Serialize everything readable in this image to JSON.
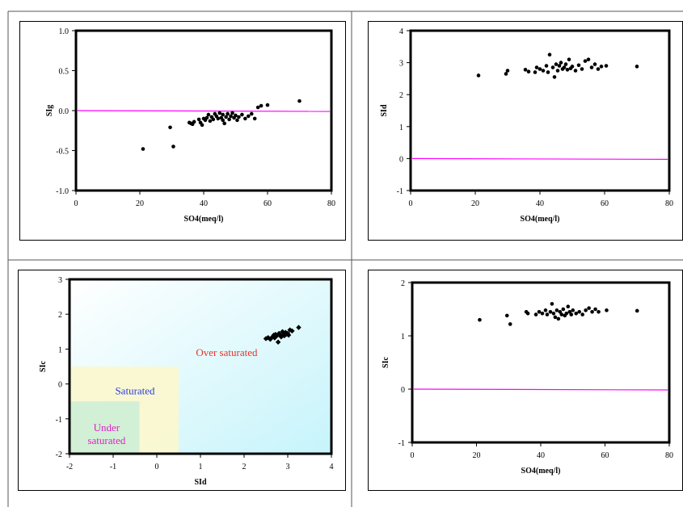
{
  "colors": {
    "axis": "#000000",
    "point": "#000000",
    "ref_line": "#ff00ff",
    "grid_border": "#555555",
    "over_saturated": "#e8332a",
    "saturated": "#2b3bd6",
    "under_saturated": "#e020c8",
    "bg_cyan": "#c6f4fb",
    "saturated_zone": "#fbf7cf",
    "under_zone": "#cdeed6"
  },
  "chart_data": [
    {
      "type": "scatter",
      "xlabel": "SO4(meq/l)",
      "ylabel": "SIg",
      "xlim": [
        0,
        80
      ],
      "ylim": [
        -1.0,
        1.0
      ],
      "xticks": [
        "0",
        "20",
        "40",
        "60",
        "80"
      ],
      "yticks": [
        "-1.0",
        "-0.5",
        "0.0",
        "0.5",
        "1.0"
      ],
      "reference_line": 0,
      "points": [
        [
          21,
          -0.48
        ],
        [
          29.5,
          -0.21
        ],
        [
          30.5,
          -0.45
        ],
        [
          35.5,
          -0.15
        ],
        [
          36,
          -0.16
        ],
        [
          36.5,
          -0.17
        ],
        [
          37,
          -0.14
        ],
        [
          38.5,
          -0.11
        ],
        [
          39,
          -0.15
        ],
        [
          39.5,
          -0.18
        ],
        [
          40,
          -0.1
        ],
        [
          40.5,
          -0.12
        ],
        [
          41,
          -0.09
        ],
        [
          41.5,
          -0.05
        ],
        [
          42,
          -0.13
        ],
        [
          42.5,
          -0.08
        ],
        [
          43,
          -0.11
        ],
        [
          43.5,
          -0.04
        ],
        [
          44,
          -0.07
        ],
        [
          44.5,
          -0.1
        ],
        [
          45,
          -0.03
        ],
        [
          45.5,
          -0.09
        ],
        [
          46,
          -0.12
        ],
        [
          46,
          -0.05
        ],
        [
          46.5,
          -0.16
        ],
        [
          47,
          -0.08
        ],
        [
          47.5,
          -0.04
        ],
        [
          48,
          -0.11
        ],
        [
          48.5,
          -0.07
        ],
        [
          49,
          -0.03
        ],
        [
          49.5,
          -0.09
        ],
        [
          50,
          -0.06
        ],
        [
          50.5,
          -0.12
        ],
        [
          51,
          -0.08
        ],
        [
          52,
          -0.05
        ],
        [
          53,
          -0.1
        ],
        [
          54,
          -0.07
        ],
        [
          55,
          -0.04
        ],
        [
          56,
          -0.1
        ],
        [
          57,
          0.04
        ],
        [
          58,
          0.06
        ],
        [
          60,
          0.07
        ],
        [
          70,
          0.12
        ]
      ]
    },
    {
      "type": "scatter",
      "xlabel": "SO4(meq/l)",
      "ylabel": "SId",
      "xlim": [
        0,
        80
      ],
      "ylim": [
        -1,
        4
      ],
      "xticks": [
        "0",
        "20",
        "40",
        "60",
        "80"
      ],
      "yticks": [
        "-1",
        "0",
        "1",
        "2",
        "3",
        "4"
      ],
      "reference_line": 0,
      "points": [
        [
          21,
          2.6
        ],
        [
          29.5,
          2.65
        ],
        [
          30,
          2.75
        ],
        [
          35.5,
          2.78
        ],
        [
          36.5,
          2.72
        ],
        [
          38.5,
          2.7
        ],
        [
          39,
          2.85
        ],
        [
          40,
          2.8
        ],
        [
          41,
          2.75
        ],
        [
          42,
          2.9
        ],
        [
          42.5,
          2.7
        ],
        [
          43,
          3.25
        ],
        [
          44,
          2.85
        ],
        [
          44.5,
          2.55
        ],
        [
          45,
          2.95
        ],
        [
          45.5,
          2.75
        ],
        [
          46,
          2.9
        ],
        [
          46.5,
          3.0
        ],
        [
          47,
          2.8
        ],
        [
          47.5,
          2.85
        ],
        [
          48,
          2.95
        ],
        [
          48.5,
          2.78
        ],
        [
          49,
          3.1
        ],
        [
          49.5,
          2.82
        ],
        [
          50,
          2.88
        ],
        [
          51,
          2.75
        ],
        [
          52,
          2.92
        ],
        [
          53,
          2.8
        ],
        [
          54,
          3.05
        ],
        [
          55,
          3.1
        ],
        [
          56,
          2.85
        ],
        [
          57,
          2.95
        ],
        [
          58,
          2.8
        ],
        [
          59,
          2.88
        ],
        [
          60.5,
          2.9
        ],
        [
          70,
          2.88
        ]
      ]
    },
    {
      "type": "scatter",
      "xlabel": "SId",
      "ylabel": "SIc",
      "xlim": [
        -2,
        4
      ],
      "ylim": [
        -2,
        3
      ],
      "xticks": [
        "-2",
        "-1",
        "0",
        "1",
        "2",
        "3",
        "4"
      ],
      "yticks": [
        "-2",
        "-1",
        "0",
        "1",
        "2",
        "3"
      ],
      "marker": "diamond",
      "zones": [
        {
          "label": "Over saturated"
        },
        {
          "label": "Saturated"
        },
        {
          "label_lines": [
            "Under",
            "saturated"
          ]
        }
      ],
      "points": [
        [
          2.5,
          1.3
        ],
        [
          2.6,
          1.28
        ],
        [
          2.65,
          1.35
        ],
        [
          2.7,
          1.32
        ],
        [
          2.72,
          1.42
        ],
        [
          2.75,
          1.38
        ],
        [
          2.78,
          1.2
        ],
        [
          2.8,
          1.45
        ],
        [
          2.82,
          1.4
        ],
        [
          2.85,
          1.35
        ],
        [
          2.88,
          1.5
        ],
        [
          2.9,
          1.42
        ],
        [
          2.92,
          1.38
        ],
        [
          2.95,
          1.48
        ],
        [
          3.0,
          1.45
        ],
        [
          3.02,
          1.4
        ],
        [
          3.05,
          1.55
        ],
        [
          3.1,
          1.52
        ],
        [
          2.55,
          1.33
        ],
        [
          2.68,
          1.4
        ],
        [
          2.96,
          1.42
        ],
        [
          3.25,
          1.62
        ]
      ]
    },
    {
      "type": "scatter",
      "xlabel": "SO4(meq/l)",
      "ylabel": "SIc",
      "xlim": [
        0,
        80
      ],
      "ylim": [
        -1,
        2
      ],
      "xticks": [
        "0",
        "20",
        "40",
        "60",
        "80"
      ],
      "yticks": [
        "-1",
        "0",
        "1",
        "2"
      ],
      "reference_line": 0,
      "points": [
        [
          21,
          1.3
        ],
        [
          29.5,
          1.38
        ],
        [
          30.5,
          1.22
        ],
        [
          35.5,
          1.45
        ],
        [
          36,
          1.42
        ],
        [
          38.5,
          1.4
        ],
        [
          39.5,
          1.45
        ],
        [
          40.5,
          1.42
        ],
        [
          41.5,
          1.48
        ],
        [
          42,
          1.4
        ],
        [
          43,
          1.45
        ],
        [
          43.5,
          1.6
        ],
        [
          44,
          1.42
        ],
        [
          44.5,
          1.35
        ],
        [
          45,
          1.48
        ],
        [
          45.5,
          1.32
        ],
        [
          46,
          1.45
        ],
        [
          46.5,
          1.4
        ],
        [
          47,
          1.5
        ],
        [
          47.5,
          1.38
        ],
        [
          48,
          1.42
        ],
        [
          48.5,
          1.55
        ],
        [
          49,
          1.45
        ],
        [
          49.5,
          1.4
        ],
        [
          50,
          1.48
        ],
        [
          51,
          1.42
        ],
        [
          52,
          1.45
        ],
        [
          53,
          1.4
        ],
        [
          54,
          1.48
        ],
        [
          55,
          1.52
        ],
        [
          56,
          1.45
        ],
        [
          57,
          1.5
        ],
        [
          58,
          1.45
        ],
        [
          60.5,
          1.48
        ],
        [
          70,
          1.47
        ]
      ]
    }
  ]
}
